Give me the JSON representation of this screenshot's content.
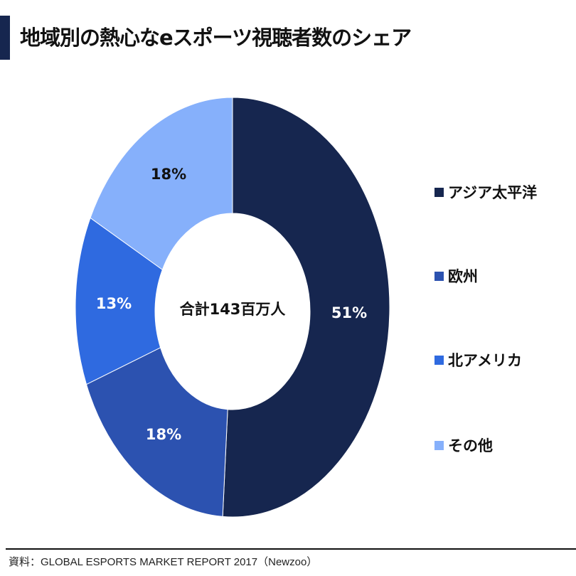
{
  "title": "地域別の熱心なeスポーツ視聴者数のシェア",
  "chart_data": {
    "type": "pie",
    "variant": "donut",
    "categories": [
      "アジア太平洋",
      "欧州",
      "北アメリカ",
      "その他"
    ],
    "values": [
      51,
      18,
      13,
      18
    ],
    "labels": [
      "51%",
      "18%",
      "13%",
      "18%"
    ],
    "colors": [
      "#16264f",
      "#2c52b0",
      "#2f6ae0",
      "#86b0fb"
    ],
    "label_colors": [
      "#ffffff",
      "#ffffff",
      "#ffffff",
      "#111111"
    ],
    "center_label": "合計143百万人",
    "legend_position": "right"
  },
  "source": "資料：GLOBAL ESPORTS MARKET REPORT 2017（Newzoo）"
}
